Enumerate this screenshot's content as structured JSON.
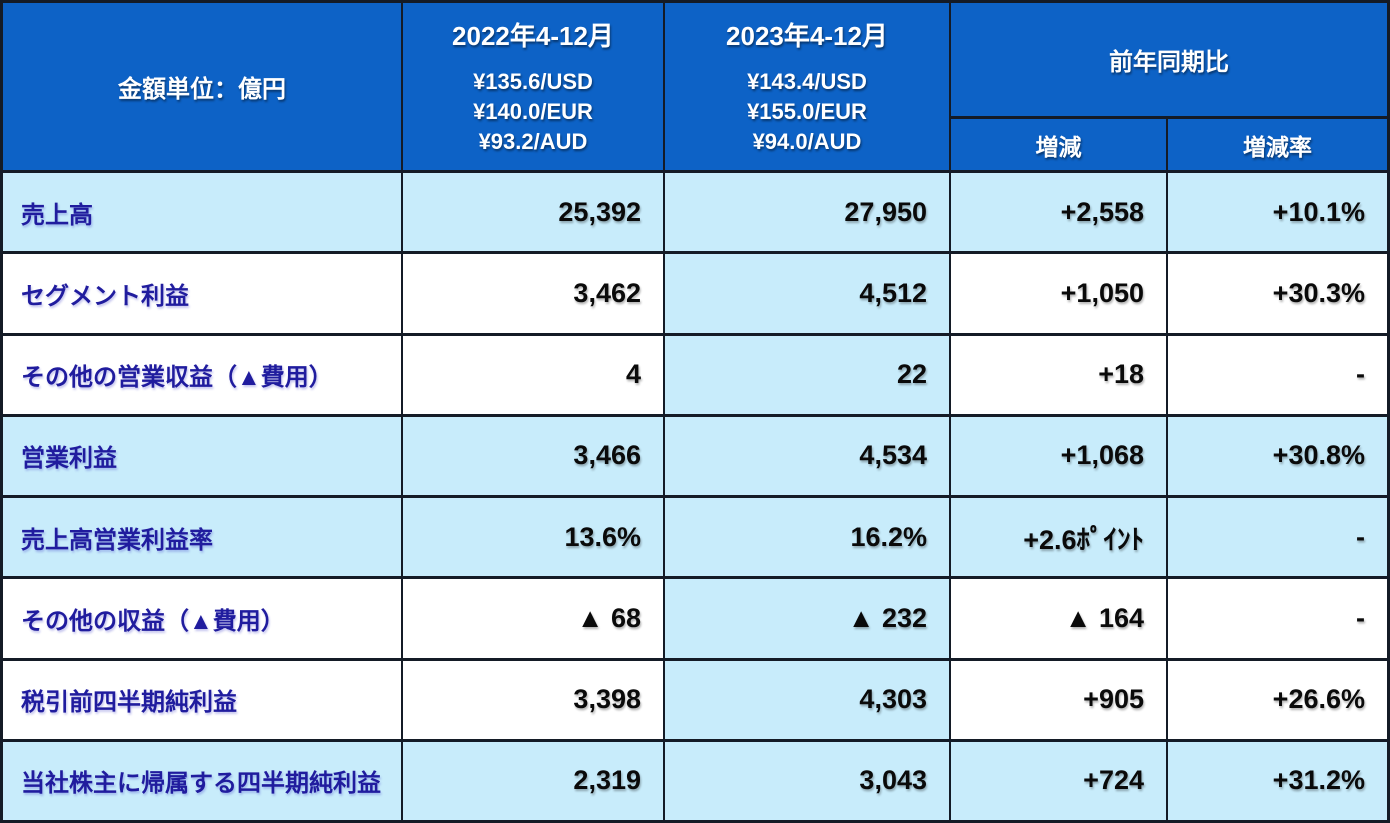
{
  "chart_data": {
    "type": "table",
    "unit_header": "金額単位：億円",
    "column_groups": {
      "period_2022": {
        "title": "2022年4-12月",
        "fx_rates": [
          "¥135.6/USD",
          "¥140.0/EUR",
          "¥93.2/AUD"
        ]
      },
      "period_2023": {
        "title": "2023年4-12月",
        "fx_rates": [
          "¥143.4/USD",
          "¥155.0/EUR",
          "¥94.0/AUD"
        ]
      },
      "yoy": {
        "title": "前年同期比",
        "change_label": "増減",
        "change_rate_label": "増減率"
      }
    },
    "rows": [
      {
        "label": "売上高",
        "fy2022": "25,392",
        "fy2023": "27,950",
        "change": "+2,558",
        "change_rate": "+10.1%",
        "highlighted": true
      },
      {
        "label": "セグメント利益",
        "fy2022": "3,462",
        "fy2023": "4,512",
        "change": "+1,050",
        "change_rate": "+30.3%",
        "highlighted": false
      },
      {
        "label": "その他の営業収益（▲費用）",
        "fy2022": "4",
        "fy2023": "22",
        "change": "+18",
        "change_rate": "-",
        "highlighted": false
      },
      {
        "label": "営業利益",
        "fy2022": "3,466",
        "fy2023": "4,534",
        "change": "+1,068",
        "change_rate": "+30.8%",
        "highlighted": true
      },
      {
        "label": "売上高営業利益率",
        "fy2022": "13.6%",
        "fy2023": "16.2%",
        "change": "+2.6ﾎﾟｲﾝﾄ",
        "change_rate": "-",
        "highlighted": true
      },
      {
        "label": "その他の収益（▲費用）",
        "fy2022": "▲ 68",
        "fy2023": "▲ 232",
        "change": "▲ 164",
        "change_rate": "-",
        "highlighted": false
      },
      {
        "label": "税引前四半期純利益",
        "fy2022": "3,398",
        "fy2023": "4,303",
        "change": "+905",
        "change_rate": "+26.6%",
        "highlighted": false
      },
      {
        "label": "当社株主に帰属する四半期純利益",
        "fy2022": "2,319",
        "fy2023": "3,043",
        "change": "+724",
        "change_rate": "+31.2%",
        "highlighted": true
      }
    ]
  },
  "colors": {
    "header_bg": "#0d62c6",
    "row_highlight_bg": "#c8ecfb",
    "row_bg": "#ffffff",
    "border": "#141b26",
    "label_text": "#201c9e",
    "value_text": "#0a0a0a",
    "header_text": "#ffffff"
  }
}
